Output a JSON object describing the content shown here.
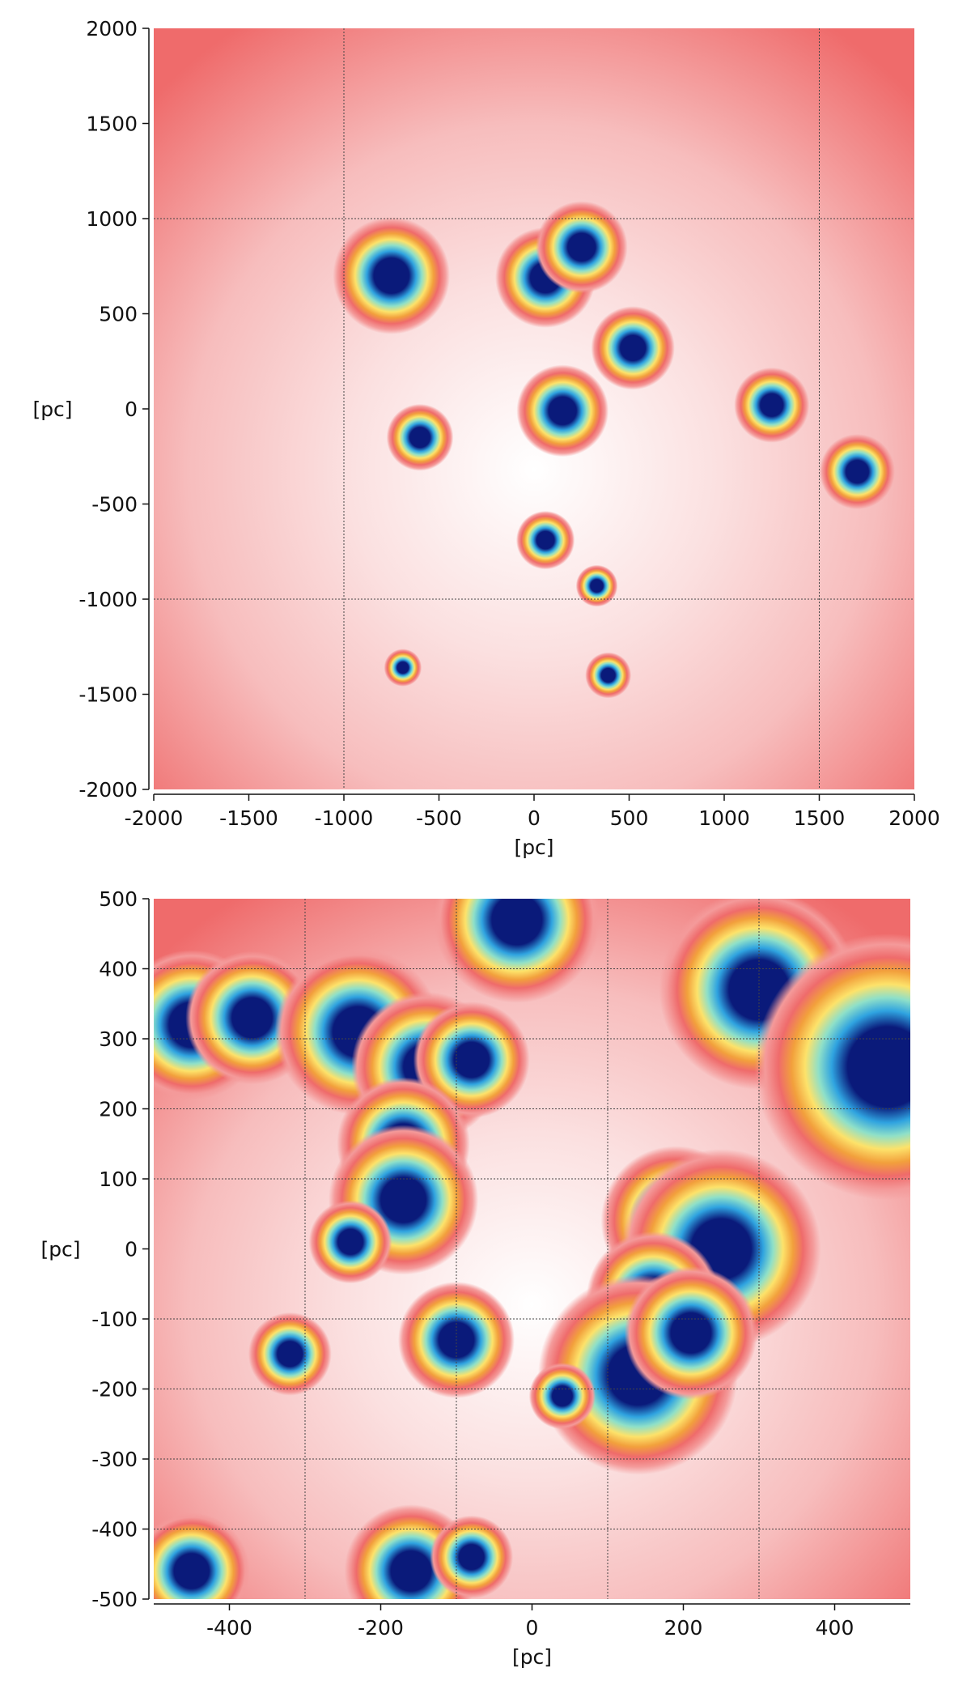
{
  "chart_data": [
    {
      "type": "heatmap",
      "xlim": [
        -2000,
        2000
      ],
      "ylim": [
        -2000,
        2000
      ],
      "xticks": [
        -2000,
        -1500,
        -1000,
        -500,
        0,
        500,
        1000,
        1500,
        2000
      ],
      "yticks": [
        2000,
        1500,
        1000,
        500,
        0,
        -500,
        -1000,
        -1500,
        -2000
      ],
      "xlabel": "[pc]",
      "ylabel": "[pc]",
      "grid": true,
      "gridlines_x": [
        -1000,
        1500
      ],
      "gridlines_y": [
        1000,
        -1000
      ],
      "colormap": [
        "#ffffff",
        "#fbe0e0",
        "#f7bdbd",
        "#f49a9a",
        "#ef6b6b",
        "#f2a03c",
        "#fde26a",
        "#8fe0c8",
        "#2fa3e0",
        "#0a1a7a"
      ],
      "features": [
        {
          "x": -750,
          "y": 700,
          "r": 140
        },
        {
          "x": 60,
          "y": 690,
          "r": 120
        },
        {
          "x": 250,
          "y": 850,
          "r": 110
        },
        {
          "x": 520,
          "y": 320,
          "r": 100
        },
        {
          "x": 1250,
          "y": 20,
          "r": 90
        },
        {
          "x": 1700,
          "y": -330,
          "r": 90
        },
        {
          "x": 150,
          "y": -10,
          "r": 110
        },
        {
          "x": -600,
          "y": -150,
          "r": 80
        },
        {
          "x": 60,
          "y": -690,
          "r": 70
        },
        {
          "x": 330,
          "y": -930,
          "r": 50
        },
        {
          "x": -690,
          "y": -1360,
          "r": 45
        },
        {
          "x": 390,
          "y": -1400,
          "r": 55
        }
      ]
    },
    {
      "type": "heatmap",
      "xlim": [
        -500,
        500
      ],
      "ylim": [
        -500,
        500
      ],
      "xticks": [
        -400,
        -200,
        0,
        200,
        400
      ],
      "yticks": [
        500,
        400,
        300,
        200,
        100,
        0,
        -100,
        -200,
        -300,
        -400,
        -500
      ],
      "xlabel": "[pc]",
      "ylabel": "[pc]",
      "grid": true,
      "gridlines_x": [
        -300,
        -100,
        100,
        300
      ],
      "gridlines_y": [
        400,
        300,
        200,
        100,
        -100,
        -200,
        -300,
        -400
      ],
      "colormap": [
        "#ffffff",
        "#fbe0e0",
        "#f7bdbd",
        "#f49a9a",
        "#ef6b6b",
        "#f2a03c",
        "#fde26a",
        "#8fe0c8",
        "#2fa3e0",
        "#0a1a7a"
      ],
      "features": [
        {
          "x": -450,
          "y": 320,
          "r": 45
        },
        {
          "x": -370,
          "y": 330,
          "r": 40
        },
        {
          "x": -230,
          "y": 310,
          "r": 50
        },
        {
          "x": -140,
          "y": 260,
          "r": 45
        },
        {
          "x": -80,
          "y": 270,
          "r": 35
        },
        {
          "x": -170,
          "y": 150,
          "r": 40
        },
        {
          "x": -170,
          "y": 70,
          "r": 45
        },
        {
          "x": -240,
          "y": 10,
          "r": 25
        },
        {
          "x": -100,
          "y": -130,
          "r": 35
        },
        {
          "x": -20,
          "y": 470,
          "r": 50
        },
        {
          "x": 300,
          "y": 370,
          "r": 60
        },
        {
          "x": 470,
          "y": 260,
          "r": 80
        },
        {
          "x": 190,
          "y": 40,
          "r": 45
        },
        {
          "x": 250,
          "y": 0,
          "r": 60
        },
        {
          "x": 160,
          "y": -70,
          "r": 40
        },
        {
          "x": 140,
          "y": -180,
          "r": 60
        },
        {
          "x": 210,
          "y": -120,
          "r": 40
        },
        {
          "x": -450,
          "y": -460,
          "r": 35
        },
        {
          "x": -160,
          "y": -460,
          "r": 40
        },
        {
          "x": -80,
          "y": -440,
          "r": 25
        },
        {
          "x": -320,
          "y": -150,
          "r": 25
        },
        {
          "x": 40,
          "y": -210,
          "r": 20
        }
      ]
    }
  ]
}
